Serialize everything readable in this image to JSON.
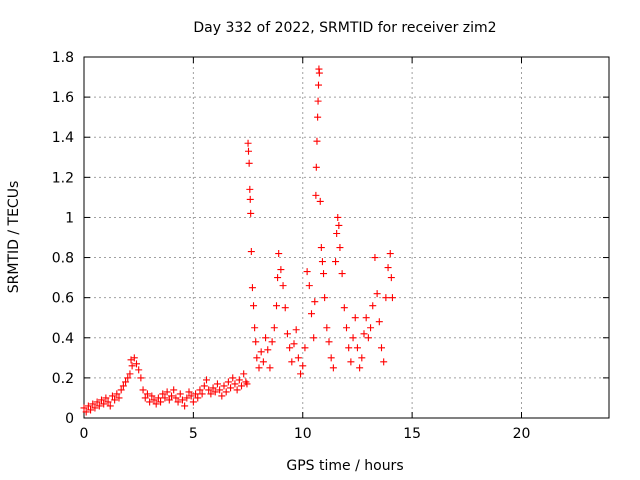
{
  "chart_data": {
    "type": "scatter",
    "title": "Day 332 of 2022, SRMTID for receiver zim2",
    "xlabel": "GPS time / hours",
    "ylabel": "SRMTID / TECUs",
    "xlim": [
      0,
      24
    ],
    "ylim": [
      0,
      1.8
    ],
    "xticks": [
      0,
      5,
      10,
      15,
      20
    ],
    "xtick_labels": [
      "0",
      "5",
      "10",
      "15",
      "20"
    ],
    "yticks": [
      0,
      0.2,
      0.4,
      0.6,
      0.8,
      1,
      1.2,
      1.4,
      1.6,
      1.8
    ],
    "ytick_labels": [
      "0",
      "0.2",
      "0.4",
      "0.6",
      "0.8",
      "1",
      "1.2",
      "1.4",
      "1.6",
      "1.8"
    ],
    "grid": true,
    "marker": "+",
    "marker_color": "#ff0000",
    "series": [
      {
        "name": "zim2",
        "points": [
          [
            0.0,
            0.05
          ],
          [
            0.1,
            0.03
          ],
          [
            0.2,
            0.06
          ],
          [
            0.3,
            0.04
          ],
          [
            0.4,
            0.07
          ],
          [
            0.5,
            0.05
          ],
          [
            0.6,
            0.08
          ],
          [
            0.7,
            0.06
          ],
          [
            0.8,
            0.09
          ],
          [
            0.9,
            0.07
          ],
          [
            1.0,
            0.1
          ],
          [
            1.1,
            0.08
          ],
          [
            1.2,
            0.06
          ],
          [
            1.3,
            0.11
          ],
          [
            1.4,
            0.09
          ],
          [
            1.5,
            0.12
          ],
          [
            1.6,
            0.1
          ],
          [
            1.7,
            0.14
          ],
          [
            1.8,
            0.16
          ],
          [
            1.9,
            0.18
          ],
          [
            2.0,
            0.2
          ],
          [
            2.1,
            0.22
          ],
          [
            2.15,
            0.29
          ],
          [
            2.2,
            0.26
          ],
          [
            2.3,
            0.3
          ],
          [
            2.4,
            0.27
          ],
          [
            2.5,
            0.24
          ],
          [
            2.6,
            0.2
          ],
          [
            2.7,
            0.14
          ],
          [
            2.8,
            0.1
          ],
          [
            2.9,
            0.12
          ],
          [
            3.0,
            0.08
          ],
          [
            3.1,
            0.11
          ],
          [
            3.2,
            0.09
          ],
          [
            3.3,
            0.07
          ],
          [
            3.4,
            0.1
          ],
          [
            3.5,
            0.08
          ],
          [
            3.6,
            0.12
          ],
          [
            3.7,
            0.1
          ],
          [
            3.8,
            0.13
          ],
          [
            3.9,
            0.09
          ],
          [
            4.0,
            0.11
          ],
          [
            4.1,
            0.14
          ],
          [
            4.2,
            0.1
          ],
          [
            4.3,
            0.08
          ],
          [
            4.4,
            0.12
          ],
          [
            4.5,
            0.09
          ],
          [
            4.6,
            0.06
          ],
          [
            4.7,
            0.1
          ],
          [
            4.8,
            0.13
          ],
          [
            4.9,
            0.11
          ],
          [
            5.0,
            0.08
          ],
          [
            5.1,
            0.12
          ],
          [
            5.2,
            0.1
          ],
          [
            5.3,
            0.14
          ],
          [
            5.4,
            0.12
          ],
          [
            5.5,
            0.16
          ],
          [
            5.6,
            0.19
          ],
          [
            5.7,
            0.14
          ],
          [
            5.8,
            0.12
          ],
          [
            5.9,
            0.15
          ],
          [
            6.0,
            0.13
          ],
          [
            6.1,
            0.17
          ],
          [
            6.2,
            0.14
          ],
          [
            6.3,
            0.11
          ],
          [
            6.4,
            0.16
          ],
          [
            6.5,
            0.13
          ],
          [
            6.6,
            0.18
          ],
          [
            6.7,
            0.15
          ],
          [
            6.8,
            0.2
          ],
          [
            6.9,
            0.17
          ],
          [
            7.0,
            0.14
          ],
          [
            7.1,
            0.19
          ],
          [
            7.2,
            0.16
          ],
          [
            7.3,
            0.22
          ],
          [
            7.4,
            0.18
          ],
          [
            7.45,
            0.17
          ],
          [
            7.5,
            1.37
          ],
          [
            7.52,
            1.33
          ],
          [
            7.55,
            1.27
          ],
          [
            7.58,
            1.14
          ],
          [
            7.6,
            1.09
          ],
          [
            7.62,
            1.02
          ],
          [
            7.65,
            0.83
          ],
          [
            7.7,
            0.65
          ],
          [
            7.75,
            0.56
          ],
          [
            7.8,
            0.45
          ],
          [
            7.85,
            0.38
          ],
          [
            7.9,
            0.3
          ],
          [
            8.0,
            0.25
          ],
          [
            8.1,
            0.33
          ],
          [
            8.2,
            0.28
          ],
          [
            8.3,
            0.4
          ],
          [
            8.4,
            0.34
          ],
          [
            8.5,
            0.25
          ],
          [
            8.6,
            0.38
          ],
          [
            8.7,
            0.45
          ],
          [
            8.8,
            0.56
          ],
          [
            8.85,
            0.7
          ],
          [
            8.9,
            0.82
          ],
          [
            9.0,
            0.74
          ],
          [
            9.1,
            0.66
          ],
          [
            9.2,
            0.55
          ],
          [
            9.3,
            0.42
          ],
          [
            9.4,
            0.35
          ],
          [
            9.5,
            0.28
          ],
          [
            9.6,
            0.37
          ],
          [
            9.7,
            0.44
          ],
          [
            9.8,
            0.3
          ],
          [
            9.9,
            0.22
          ],
          [
            10.0,
            0.26
          ],
          [
            10.1,
            0.35
          ],
          [
            10.2,
            0.73
          ],
          [
            10.3,
            0.66
          ],
          [
            10.4,
            0.52
          ],
          [
            10.5,
            0.4
          ],
          [
            10.55,
            0.58
          ],
          [
            10.6,
            1.11
          ],
          [
            10.62,
            1.25
          ],
          [
            10.65,
            1.38
          ],
          [
            10.68,
            1.5
          ],
          [
            10.7,
            1.58
          ],
          [
            10.72,
            1.66
          ],
          [
            10.74,
            1.74
          ],
          [
            10.76,
            1.72
          ],
          [
            10.8,
            1.08
          ],
          [
            10.85,
            0.85
          ],
          [
            10.9,
            0.78
          ],
          [
            10.95,
            0.72
          ],
          [
            11.0,
            0.6
          ],
          [
            11.1,
            0.45
          ],
          [
            11.2,
            0.38
          ],
          [
            11.3,
            0.3
          ],
          [
            11.4,
            0.25
          ],
          [
            11.5,
            0.78
          ],
          [
            11.55,
            0.92
          ],
          [
            11.6,
            1.0
          ],
          [
            11.65,
            0.96
          ],
          [
            11.7,
            0.85
          ],
          [
            11.8,
            0.72
          ],
          [
            11.9,
            0.55
          ],
          [
            12.0,
            0.45
          ],
          [
            12.1,
            0.35
          ],
          [
            12.2,
            0.28
          ],
          [
            12.3,
            0.4
          ],
          [
            12.4,
            0.5
          ],
          [
            12.5,
            0.35
          ],
          [
            12.6,
            0.25
          ],
          [
            12.7,
            0.3
          ],
          [
            12.8,
            0.42
          ],
          [
            12.9,
            0.5
          ],
          [
            13.0,
            0.4
          ],
          [
            13.1,
            0.45
          ],
          [
            13.2,
            0.56
          ],
          [
            13.3,
            0.8
          ],
          [
            13.4,
            0.62
          ],
          [
            13.5,
            0.48
          ],
          [
            13.6,
            0.35
          ],
          [
            13.7,
            0.28
          ],
          [
            13.8,
            0.6
          ],
          [
            13.9,
            0.75
          ],
          [
            14.0,
            0.82
          ],
          [
            14.05,
            0.7
          ],
          [
            14.1,
            0.6
          ]
        ]
      }
    ]
  }
}
